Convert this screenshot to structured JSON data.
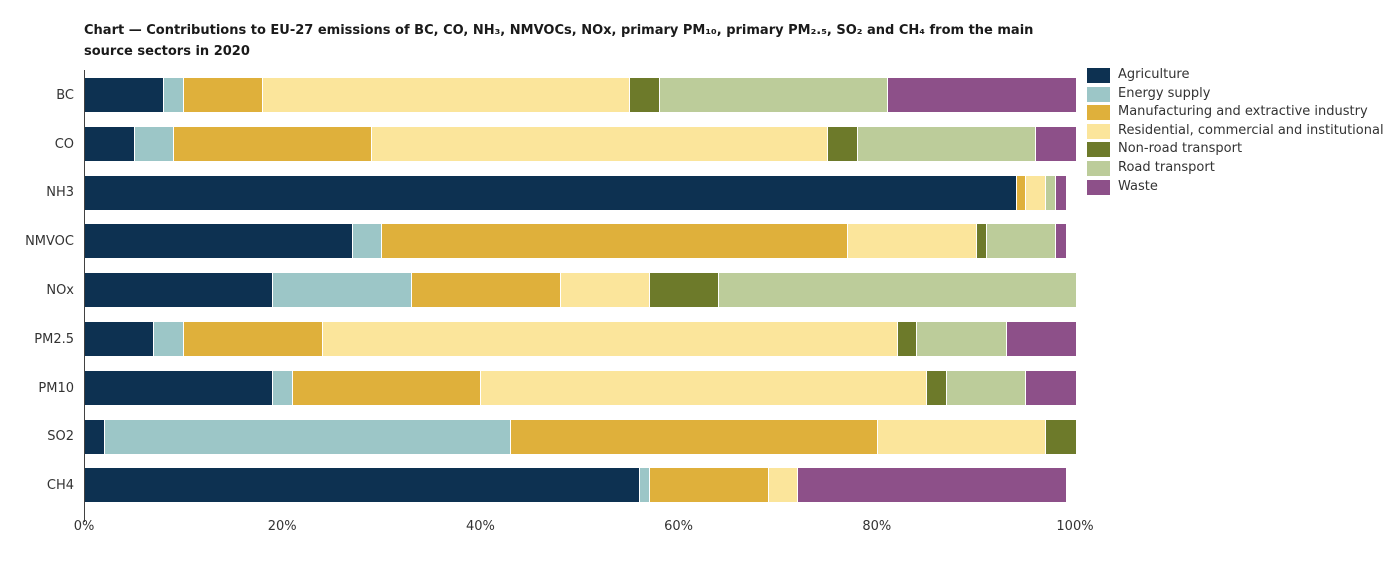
{
  "chart_data": {
    "type": "bar",
    "orientation": "horizontal-stacked",
    "title": "Chart — Contributions to EU-27 emissions of BC, CO, NH₃, NMVOCs, NOx, primary PM₁₀, primary PM₂.₅, SO₂ and CH₄ from the main source sectors in 2020",
    "categories": [
      "BC",
      "CO",
      "NH3",
      "NMVOC",
      "NOx",
      "PM2.5",
      "PM10",
      "SO2",
      "CH4"
    ],
    "series": [
      {
        "name": "Agriculture",
        "color": "#0d3151",
        "values": [
          8,
          5,
          94,
          27,
          19,
          7,
          19,
          2,
          56
        ]
      },
      {
        "name": "Energy supply",
        "color": "#9cc6c7",
        "values": [
          2,
          4,
          0,
          3,
          14,
          3,
          2,
          41,
          1
        ]
      },
      {
        "name": "Manufacturing and extractive industry",
        "color": "#dfb03b",
        "values": [
          8,
          20,
          1,
          47,
          15,
          14,
          19,
          37,
          12
        ]
      },
      {
        "name": "Residential, commercial and institutional",
        "color": "#fbe59b",
        "values": [
          37,
          46,
          2,
          13,
          9,
          58,
          45,
          17,
          3
        ]
      },
      {
        "name": "Non-road transport",
        "color": "#6d7a2a",
        "values": [
          3,
          3,
          0,
          1,
          7,
          2,
          2,
          3,
          0
        ]
      },
      {
        "name": "Road transport",
        "color": "#bccc9a",
        "values": [
          23,
          18,
          1,
          7,
          36,
          9,
          8,
          0,
          0
        ]
      },
      {
        "name": "Waste",
        "color": "#8d5089",
        "values": [
          19,
          4,
          1,
          1,
          0,
          7,
          5,
          0,
          27
        ]
      }
    ],
    "x_ticks": [
      "0%",
      "20%",
      "40%",
      "60%",
      "80%",
      "100%"
    ],
    "xlim": [
      0,
      100
    ],
    "grid": false,
    "legend_position": "right"
  }
}
